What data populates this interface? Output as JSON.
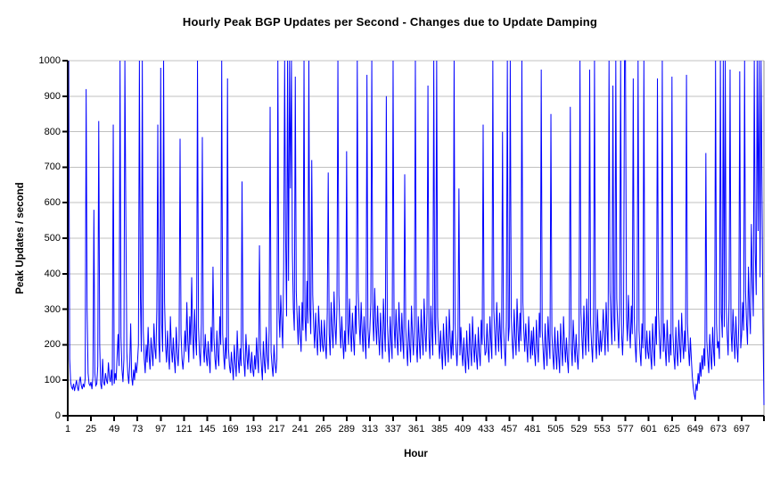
{
  "chart_data": {
    "type": "line",
    "title": "Hourly Peak BGP Updates per Second - Changes due to Update Damping",
    "xlabel": "Hour",
    "ylabel": "Peak Updates / second",
    "x_tick_labels": [
      1,
      25,
      49,
      73,
      97,
      121,
      145,
      169,
      193,
      217,
      241,
      265,
      289,
      313,
      337,
      361,
      385,
      409,
      433,
      457,
      481,
      505,
      529,
      553,
      577,
      601,
      625,
      649,
      673,
      697
    ],
    "x_tick_step": 24,
    "y_tick_labels": [
      0,
      100,
      200,
      300,
      400,
      500,
      600,
      700,
      800,
      900,
      1000
    ],
    "xlim": [
      1,
      720
    ],
    "ylim": [
      0,
      1000
    ],
    "grid": "horizontal-gray",
    "legend": "none",
    "series": [
      {
        "name": "hourly-peak-bgp-updates",
        "color": "#0000ff",
        "x_start": 1,
        "x_step": 1,
        "values": [
          620,
          1000,
          160,
          95,
          80,
          75,
          90,
          70,
          85,
          100,
          80,
          70,
          95,
          110,
          85,
          75,
          90,
          80,
          105,
          920,
          300,
          120,
          90,
          85,
          95,
          75,
          110,
          580,
          120,
          85,
          90,
          140,
          830,
          200,
          90,
          75,
          160,
          95,
          85,
          120,
          100,
          90,
          150,
          110,
          95,
          130,
          85,
          820,
          90,
          120,
          100,
          170,
          230,
          140,
          1000,
          220,
          130,
          95,
          160,
          1000,
          560,
          180,
          120,
          90,
          140,
          260,
          110,
          85,
          130,
          100,
          150,
          120,
          150,
          200,
          1000,
          340,
          180,
          1000,
          240,
          160,
          120,
          200,
          150,
          250,
          170,
          130,
          220,
          180,
          140,
          260,
          190,
          160,
          300,
          820,
          210,
          150,
          980,
          260,
          180,
          1000,
          320,
          200,
          150,
          240,
          170,
          130,
          280,
          190,
          150,
          220,
          160,
          120,
          250,
          180,
          140,
          210,
          780,
          230,
          160,
          130,
          170,
          240,
          180,
          320,
          210,
          150,
          280,
          200,
          390,
          230,
          160,
          300,
          220,
          170,
          1000,
          250,
          180,
          140,
          260,
          785,
          200,
          150,
          230,
          170,
          140,
          210,
          160,
          120,
          250,
          180,
          420,
          220,
          160,
          130,
          240,
          170,
          140,
          280,
          200,
          1000,
          230,
          170,
          130,
          220,
          160,
          950,
          190,
          140,
          120,
          180,
          140,
          100,
          200,
          150,
          110,
          240,
          160,
          120,
          190,
          140,
          660,
          210,
          150,
          110,
          230,
          170,
          130,
          200,
          150,
          120,
          180,
          130,
          110,
          170,
          130,
          220,
          160,
          120,
          480,
          190,
          140,
          100,
          210,
          150,
          120,
          250,
          170,
          130,
          240,
          870,
          180,
          140,
          110,
          200,
          150,
          120,
          160,
          1000,
          300,
          220,
          340,
          260,
          190,
          420,
          1000,
          500,
          280,
          1000,
          380,
          1000,
          640,
          1000,
          460,
          300,
          240,
          955,
          350,
          270,
          200,
          310,
          230,
          180,
          320,
          240,
          1000,
          280,
          210,
          380,
          260,
          1000,
          300,
          230,
          720,
          340,
          250,
          190,
          290,
          220,
          170,
          310,
          240,
          180,
          270,
          200,
          180,
          270,
          200,
          160,
          290,
          685,
          230,
          170,
          320,
          240,
          190,
          350,
          260,
          200,
          300,
          1000,
          340,
          250,
          190,
          280,
          210,
          160,
          240,
          180,
          745,
          260,
          200,
          330,
          240,
          180,
          290,
          220,
          170,
          310,
          230,
          1000,
          350,
          260,
          200,
          320,
          240,
          180,
          280,
          210,
          160,
          960,
          250,
          190,
          240,
          320,
          1000,
          280,
          210,
          360,
          260,
          200,
          310,
          230,
          170,
          290,
          220,
          160,
          330,
          240,
          180,
          900,
          270,
          200,
          150,
          280,
          210,
          160,
          1000,
          260,
          190,
          300,
          220,
          170,
          320,
          240,
          180,
          290,
          210,
          160,
          680,
          250,
          190,
          140,
          270,
          200,
          150,
          310,
          230,
          170,
          260,
          1000,
          200,
          150,
          280,
          210,
          160,
          300,
          220,
          170,
          330,
          240,
          180,
          290,
          930,
          220,
          160,
          310,
          230,
          170,
          1000,
          260,
          200,
          1000,
          280,
          210,
          160,
          240,
          180,
          130,
          260,
          190,
          140,
          280,
          200,
          150,
          300,
          220,
          160,
          240,
          170,
          1000,
          260,
          190,
          140,
          220,
          640,
          170,
          250,
          180,
          140,
          220,
          160,
          120,
          240,
          170,
          130,
          260,
          190,
          140,
          280,
          200,
          150,
          230,
          170,
          130,
          250,
          180,
          140,
          270,
          200,
          820,
          230,
          170,
          180,
          260,
          190,
          150,
          280,
          210,
          160,
          1000,
          300,
          230,
          170,
          320,
          240,
          180,
          290,
          220,
          160,
          800,
          250,
          190,
          140,
          270,
          1000,
          210,
          250,
          1000,
          280,
          210,
          160,
          300,
          220,
          170,
          330,
          240,
          180,
          290,
          210,
          1000,
          320,
          240,
          180,
          260,
          200,
          150,
          280,
          210,
          160,
          240,
          170,
          250,
          180,
          140,
          270,
          200,
          150,
          290,
          220,
          975,
          240,
          180,
          130,
          260,
          190,
          140,
          280,
          210,
          160,
          850,
          230,
          170,
          130,
          250,
          180,
          130,
          240,
          170,
          120,
          260,
          190,
          140,
          280,
          200,
          150,
          220,
          160,
          120,
          250,
          870,
          190,
          140,
          270,
          200,
          150,
          230,
          170,
          130,
          200,
          1000,
          290,
          220,
          160,
          310,
          230,
          170,
          330,
          240,
          180,
          975,
          260,
          200,
          150,
          280,
          1000,
          210,
          160,
          300,
          220,
          170,
          240,
          180,
          220,
          300,
          230,
          170,
          320,
          240,
          180,
          1000,
          350,
          260,
          200,
          930,
          280,
          210,
          1000,
          330,
          250,
          190,
          300,
          1000,
          230,
          170,
          260,
          1000,
          1000,
          280,
          210,
          340,
          250,
          190,
          310,
          230,
          950,
          280,
          200,
          150,
          270,
          1000,
          240,
          180,
          140,
          260,
          190,
          1000,
          220,
          160,
          240,
          180,
          160,
          240,
          170,
          130,
          260,
          190,
          140,
          280,
          200,
          950,
          300,
          220,
          160,
          240,
          1000,
          180,
          260,
          190,
          140,
          270,
          200,
          150,
          230,
          170,
          955,
          230,
          170,
          130,
          250,
          180,
          140,
          270,
          200,
          150,
          290,
          210,
          160,
          240,
          180,
          960,
          260,
          190,
          140,
          220,
          160,
          110,
          80,
          60,
          45,
          90,
          70,
          120,
          90,
          150,
          110,
          170,
          130,
          190,
          140,
          740,
          210,
          160,
          120,
          230,
          170,
          130,
          250,
          180,
          140,
          1000,
          260,
          190,
          210,
          160,
          1000,
          290,
          220,
          1000,
          250,
          1000,
          310,
          230,
          170,
          330,
          975,
          240,
          180,
          300,
          220,
          160,
          280,
          200,
          150,
          260,
          970,
          190,
          230,
          320,
          240,
          1000,
          350,
          260,
          200,
          420,
          300,
          230,
          540,
          380,
          280,
          1000,
          460,
          340,
          1000,
          520,
          1000,
          390,
          1000,
          620,
          260,
          30
        ]
      }
    ]
  },
  "colors": {
    "line": "#0000ff",
    "gridline": "#c0c0c0",
    "plot_border": "#909090",
    "axis": "#000000",
    "text": "#000000",
    "background": "#ffffff"
  }
}
